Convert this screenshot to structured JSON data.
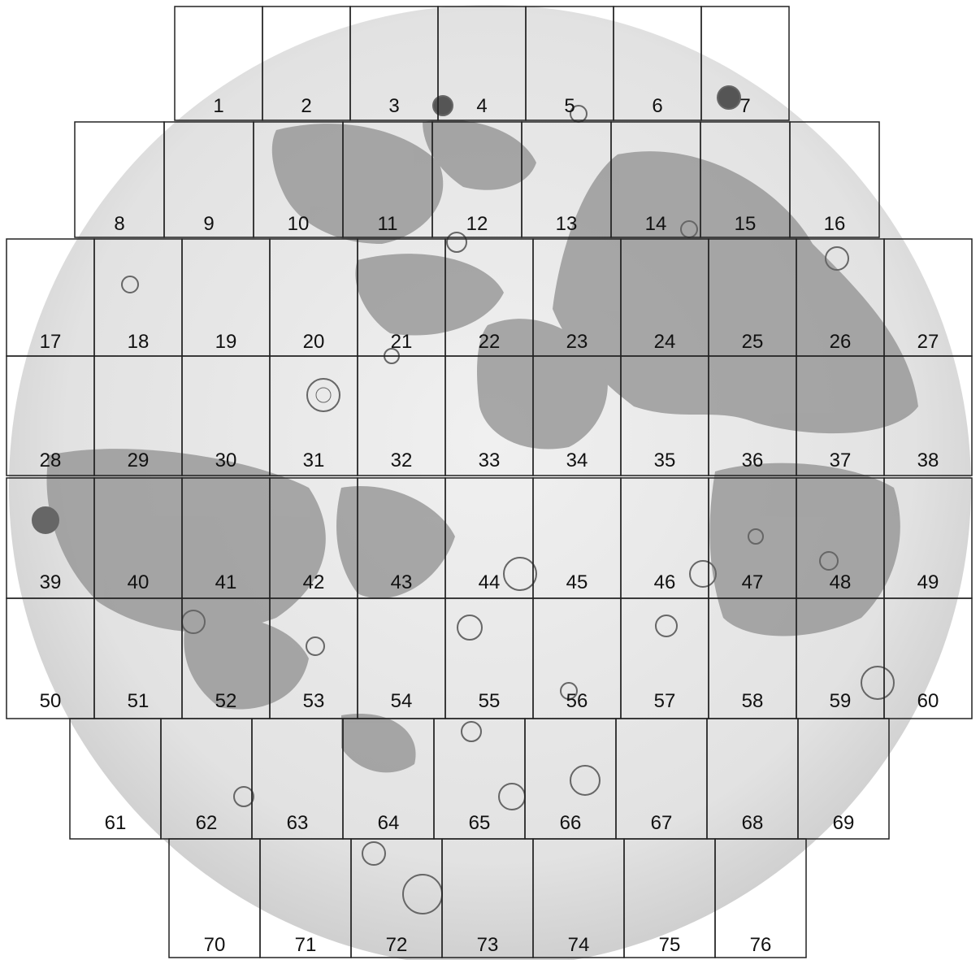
{
  "map": {
    "subject": "lunar-nearside-chart-index",
    "colors": {
      "paper": "#ffffff",
      "highlands": "#e6e6e6",
      "maria": "#8f8f8f",
      "grid": "#222222",
      "text": "#111111"
    },
    "rows": [
      {
        "labels": [
          "1",
          "2",
          "3",
          "4",
          "5",
          "6",
          "7"
        ]
      },
      {
        "labels": [
          "8",
          "9",
          "10",
          "11",
          "12",
          "13",
          "14",
          "15",
          "16"
        ]
      },
      {
        "labels": [
          "17",
          "18",
          "19",
          "20",
          "21",
          "22",
          "23",
          "24",
          "25",
          "26",
          "27"
        ]
      },
      {
        "labels": [
          "28",
          "29",
          "30",
          "31",
          "32",
          "33",
          "34",
          "35",
          "36",
          "37",
          "38"
        ]
      },
      {
        "labels": [
          "39",
          "40",
          "41",
          "42",
          "43",
          "44",
          "45",
          "46",
          "47",
          "48",
          "49"
        ]
      },
      {
        "labels": [
          "50",
          "51",
          "52",
          "53",
          "54",
          "55",
          "56",
          "57",
          "58",
          "59",
          "60"
        ]
      },
      {
        "labels": [
          "61",
          "62",
          "63",
          "64",
          "65",
          "66",
          "67",
          "68",
          "69"
        ]
      },
      {
        "labels": [
          "70",
          "71",
          "72",
          "73",
          "74",
          "75",
          "76"
        ]
      }
    ]
  }
}
